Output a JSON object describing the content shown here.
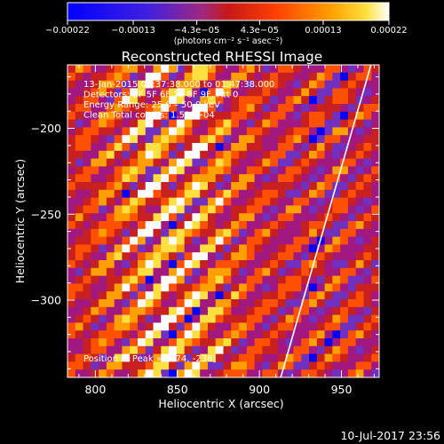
{
  "chart_data": {
    "type": "heatmap",
    "title": "Reconstructed RHESSI Image",
    "xlabel": "Heliocentric X (arcsec)",
    "ylabel": "Heliocentric Y (arcsec)",
    "xlim": [
      783,
      973
    ],
    "ylim": [
      -345,
      -163
    ],
    "x_ticks": [
      800,
      850,
      900,
      950
    ],
    "y_ticks": [
      -200,
      -250,
      -300
    ],
    "x_tick_labels": [
      "800",
      "850",
      "900",
      "950"
    ],
    "y_tick_labels": [
      "−200",
      "−250",
      "−300"
    ],
    "colorbar": {
      "range": [
        -0.00022,
        0.00022
      ],
      "tick_values": [
        -0.00022,
        -0.00013,
        -4.3e-05,
        4.3e-05,
        0.00013,
        0.00022
      ],
      "tick_labels": [
        "−0.00022",
        "−0.00013",
        "−4.3e−05",
        "4.3e−05",
        "0.00013",
        "0.00022"
      ],
      "units_label": "(photons cm⁻² s⁻¹ asec⁻²)"
    },
    "info_lines": [
      "13-Jan-2015 01:37:38.000 to 01:47:38.000",
      "Detectors: 3F 5F 6F 7F 8F 9F, Att 0",
      "Energy Range: 25.0 – 50.0 keV",
      "Clean    Total counts: 1.51E+04"
    ],
    "peak_label": "Position of Peak = [874, -238]",
    "peak_position": [
      874,
      -238
    ],
    "limb_line": [
      [
        913,
        -345
      ],
      [
        968,
        -163
      ]
    ],
    "timestamp": "10-Jul-2017 23:56",
    "colors": [
      "#000060",
      "#0000ff",
      "#7030c0",
      "#a01880",
      "#c82020",
      "#ff5000",
      "#ffa000",
      "#ffe040",
      "#ffffff"
    ]
  }
}
